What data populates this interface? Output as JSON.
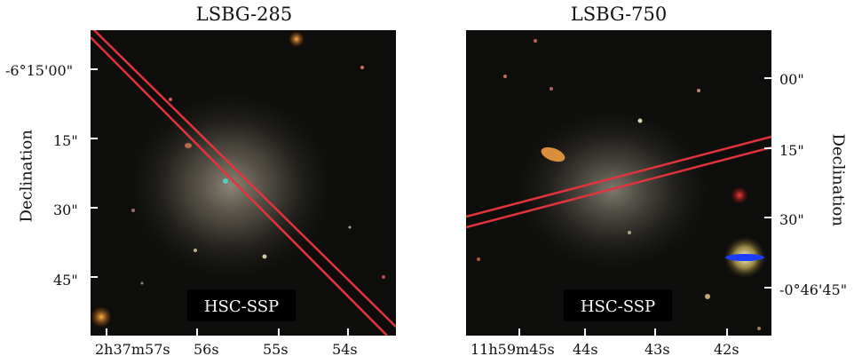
{
  "panels": [
    {
      "title": "LSBG-285",
      "ylabel": "Declination",
      "yticks": [
        "-6°15'00\"",
        "15\"",
        "30\"",
        "45\""
      ],
      "xticks": [
        "2h37m57s",
        "56s",
        "55s",
        "54s"
      ],
      "survey_label": "HSC-SSP"
    },
    {
      "title": "LSBG-750",
      "ylabel": "Declination",
      "yticks": [
        "00\"",
        "15\"",
        "30\"",
        "-0°46'45\""
      ],
      "xticks": [
        "11h59m45s",
        "44s",
        "43s",
        "42s"
      ],
      "survey_label": "HSC-SSP"
    }
  ],
  "colors": {
    "sky": "#0d0d0b",
    "galaxy_glow": "#8a8070",
    "stripe": "#e2343b",
    "label_box": "#000000",
    "label_text": "#ffffff"
  }
}
